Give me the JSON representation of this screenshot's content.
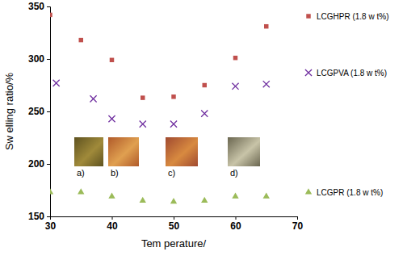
{
  "chart_data": {
    "type": "scatter",
    "x_label": "Tem perature/",
    "y_label": "Sw elling ratio/%",
    "xlim": [
      30,
      70
    ],
    "xticks": [
      30,
      40,
      50,
      60,
      70
    ],
    "ylim": [
      150,
      350
    ],
    "yticks": [
      150,
      200,
      250,
      300,
      350
    ],
    "grid": false,
    "legend": "right",
    "series": [
      {
        "name": "LCGHPR (1.8 w t%)",
        "color": "#c0504d",
        "marker": "square",
        "x": [
          30,
          35,
          40,
          45,
          50,
          55,
          60,
          65
        ],
        "values": [
          342,
          318,
          299,
          263,
          264,
          275,
          301,
          331
        ]
      },
      {
        "name": "LCGPVA (1.8 w t%)",
        "color": "#7030a0",
        "marker": "x",
        "x": [
          31,
          37,
          40,
          45,
          50,
          55,
          60,
          65
        ],
        "values": [
          277,
          262,
          243,
          238,
          238,
          248,
          274,
          276
        ]
      },
      {
        "name": "LCGPR (1.8 w t%)",
        "color": "#9bbb59",
        "marker": "triangle",
        "x": [
          30,
          35,
          40,
          45,
          50,
          55,
          60,
          65
        ],
        "values": [
          173,
          173,
          169,
          165,
          164,
          165,
          169,
          169
        ]
      }
    ],
    "annotations": [
      {
        "text": "a)"
      },
      {
        "text": "b)"
      },
      {
        "text": "c)"
      },
      {
        "text": "d)"
      }
    ]
  }
}
